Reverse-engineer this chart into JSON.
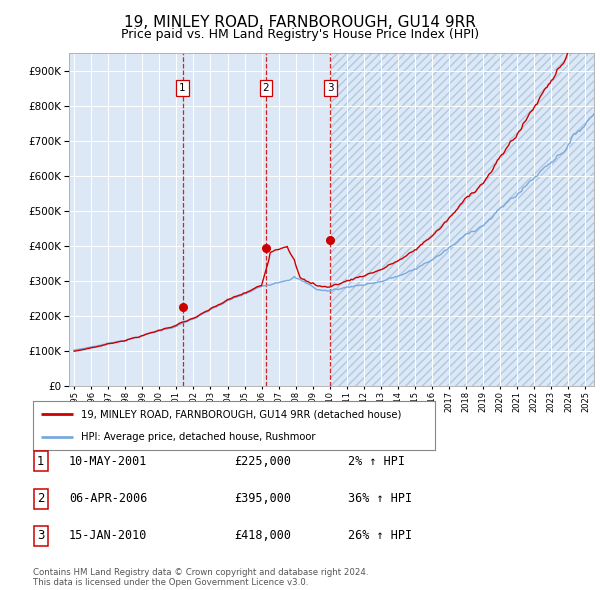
{
  "title": "19, MINLEY ROAD, FARNBOROUGH, GU14 9RR",
  "subtitle": "Price paid vs. HM Land Registry's House Price Index (HPI)",
  "title_fontsize": 11,
  "subtitle_fontsize": 9,
  "background_color": "#ffffff",
  "plot_bg_color": "#dce8f5",
  "hatch_bg_color": "#ccdcee",
  "grid_color": "#ffffff",
  "hpi_color": "#7aaadd",
  "price_color": "#cc0000",
  "sale_marker_color": "#cc0000",
  "vline_color": "#cc0000",
  "ylim": [
    0,
    950000
  ],
  "yticks": [
    0,
    100000,
    200000,
    300000,
    400000,
    500000,
    600000,
    700000,
    800000,
    900000
  ],
  "xlim_start": 1994.7,
  "xlim_end": 2025.5,
  "last_sale_year": 2010.04,
  "sales": [
    {
      "year": 2001.36,
      "price": 225000,
      "label": "1"
    },
    {
      "year": 2006.26,
      "price": 395000,
      "label": "2"
    },
    {
      "year": 2010.04,
      "price": 418000,
      "label": "3"
    }
  ],
  "legend_entries": [
    {
      "label": "19, MINLEY ROAD, FARNBOROUGH, GU14 9RR (detached house)",
      "color": "#cc0000"
    },
    {
      "label": "HPI: Average price, detached house, Rushmoor",
      "color": "#7aaadd"
    }
  ],
  "table_rows": [
    {
      "num": "1",
      "date": "10-MAY-2001",
      "price": "£225,000",
      "hpi": "2% ↑ HPI"
    },
    {
      "num": "2",
      "date": "06-APR-2006",
      "price": "£395,000",
      "hpi": "36% ↑ HPI"
    },
    {
      "num": "3",
      "date": "15-JAN-2010",
      "price": "£418,000",
      "hpi": "26% ↑ HPI"
    }
  ],
  "footnote": "Contains HM Land Registry data © Crown copyright and database right 2024.\nThis data is licensed under the Open Government Licence v3.0."
}
